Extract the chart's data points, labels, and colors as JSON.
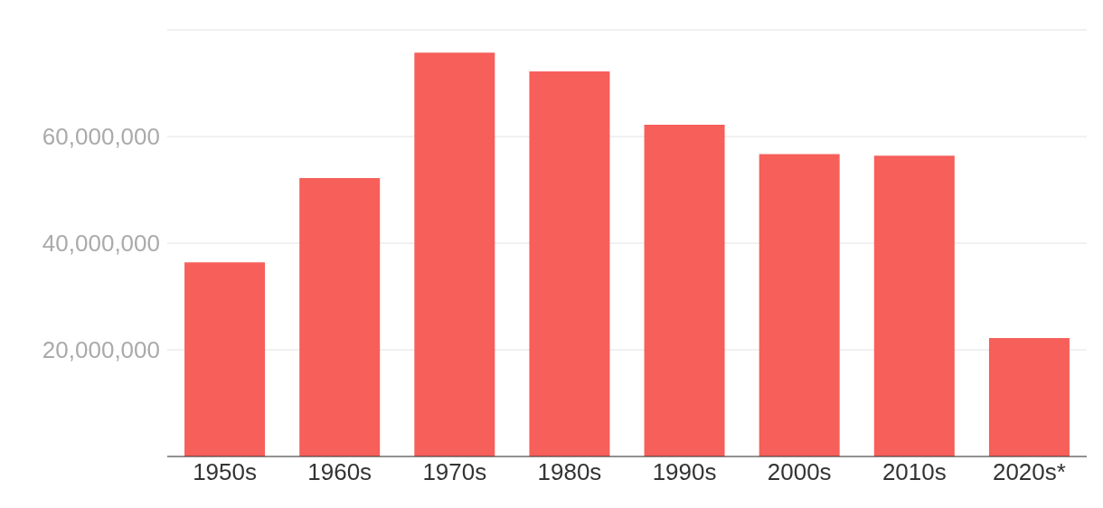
{
  "chart_data": {
    "type": "bar",
    "categories": [
      "1950s",
      "1960s",
      "1970s",
      "1980s",
      "1990s",
      "2000s",
      "2010s",
      "2020s*"
    ],
    "values": [
      36400000,
      52200000,
      75700000,
      72200000,
      62200000,
      56700000,
      56400000,
      22200000
    ],
    "color": "#f65f5a",
    "ylim": [
      0,
      80000000
    ],
    "yticks": [
      {
        "value": 20000000,
        "label": "20,000,000"
      },
      {
        "value": 40000000,
        "label": "40,000,000"
      },
      {
        "value": 60000000,
        "label": "60,000,000"
      }
    ],
    "grid": "y"
  }
}
